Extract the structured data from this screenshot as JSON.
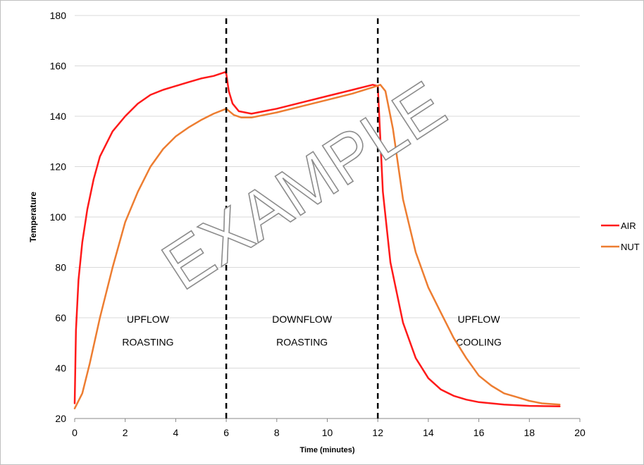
{
  "chart_data": {
    "type": "line",
    "title": "",
    "xlabel": "Time (minutes)",
    "ylabel": "Temperature",
    "xlim": [
      0,
      20
    ],
    "ylim": [
      20,
      180
    ],
    "x_ticks": [
      "0",
      "2",
      "4",
      "6",
      "8",
      "10",
      "12",
      "14",
      "16",
      "18",
      "20"
    ],
    "y_ticks": [
      "20",
      "40",
      "60",
      "80",
      "100",
      "120",
      "140",
      "160",
      "180"
    ],
    "grid": "horizontal",
    "legend_position": "right",
    "vertical_markers": [
      6,
      12
    ],
    "region_labels": [
      {
        "lines": [
          "UPFLOW",
          "ROASTING"
        ],
        "x": 2.9,
        "y": [
          58,
          49
        ]
      },
      {
        "lines": [
          "DOWNFLOW",
          "ROASTING"
        ],
        "x": 9.0,
        "y": [
          58,
          49
        ]
      },
      {
        "lines": [
          "UPFLOW",
          "COOLING"
        ],
        "x": 16.0,
        "y": [
          58,
          49
        ]
      }
    ],
    "watermark": "EXAMPLE",
    "series": [
      {
        "name": "AIR",
        "color": "#ff1a1a",
        "points": [
          [
            0,
            26
          ],
          [
            0.05,
            55
          ],
          [
            0.15,
            75
          ],
          [
            0.3,
            90
          ],
          [
            0.5,
            103
          ],
          [
            0.75,
            115
          ],
          [
            1.0,
            124
          ],
          [
            1.5,
            134
          ],
          [
            2.0,
            140
          ],
          [
            2.5,
            145
          ],
          [
            3.0,
            148.5
          ],
          [
            3.5,
            150.5
          ],
          [
            4.0,
            152
          ],
          [
            4.5,
            153.5
          ],
          [
            5.0,
            155
          ],
          [
            5.5,
            156
          ],
          [
            5.95,
            157.5
          ],
          [
            6.0,
            157
          ],
          [
            6.1,
            150
          ],
          [
            6.25,
            145
          ],
          [
            6.5,
            142
          ],
          [
            7.0,
            141
          ],
          [
            8.0,
            143
          ],
          [
            9.0,
            145.5
          ],
          [
            10.0,
            148
          ],
          [
            11.0,
            150.5
          ],
          [
            11.8,
            152.5
          ],
          [
            12.0,
            152
          ],
          [
            12.2,
            110
          ],
          [
            12.5,
            82
          ],
          [
            13.0,
            58
          ],
          [
            13.5,
            44
          ],
          [
            14.0,
            36
          ],
          [
            14.5,
            31.5
          ],
          [
            15.0,
            29
          ],
          [
            15.5,
            27.5
          ],
          [
            16.0,
            26.5
          ],
          [
            17.0,
            25.5
          ],
          [
            18.0,
            25
          ],
          [
            19.2,
            24.8
          ]
        ]
      },
      {
        "name": "NUT",
        "color": "#ed7d31",
        "points": [
          [
            0,
            24
          ],
          [
            0.3,
            30
          ],
          [
            0.6,
            42
          ],
          [
            1.0,
            60
          ],
          [
            1.5,
            80
          ],
          [
            2.0,
            98
          ],
          [
            2.5,
            110
          ],
          [
            3.0,
            120
          ],
          [
            3.5,
            127
          ],
          [
            4.0,
            132
          ],
          [
            4.5,
            135.5
          ],
          [
            5.0,
            138.5
          ],
          [
            5.5,
            141
          ],
          [
            6.0,
            143
          ],
          [
            6.3,
            140.5
          ],
          [
            6.6,
            139.5
          ],
          [
            7.0,
            139.5
          ],
          [
            8.0,
            141.5
          ],
          [
            9.0,
            144
          ],
          [
            10.0,
            146.5
          ],
          [
            11.0,
            149
          ],
          [
            11.8,
            151.5
          ],
          [
            12.1,
            152.5
          ],
          [
            12.3,
            150
          ],
          [
            12.6,
            135
          ],
          [
            13.0,
            107
          ],
          [
            13.5,
            86
          ],
          [
            14.0,
            72
          ],
          [
            14.5,
            62
          ],
          [
            15.0,
            52
          ],
          [
            15.5,
            44
          ],
          [
            16.0,
            37
          ],
          [
            16.5,
            33
          ],
          [
            17.0,
            30
          ],
          [
            17.5,
            28.5
          ],
          [
            18.0,
            27
          ],
          [
            18.5,
            26
          ],
          [
            19.2,
            25.5
          ]
        ]
      }
    ]
  }
}
